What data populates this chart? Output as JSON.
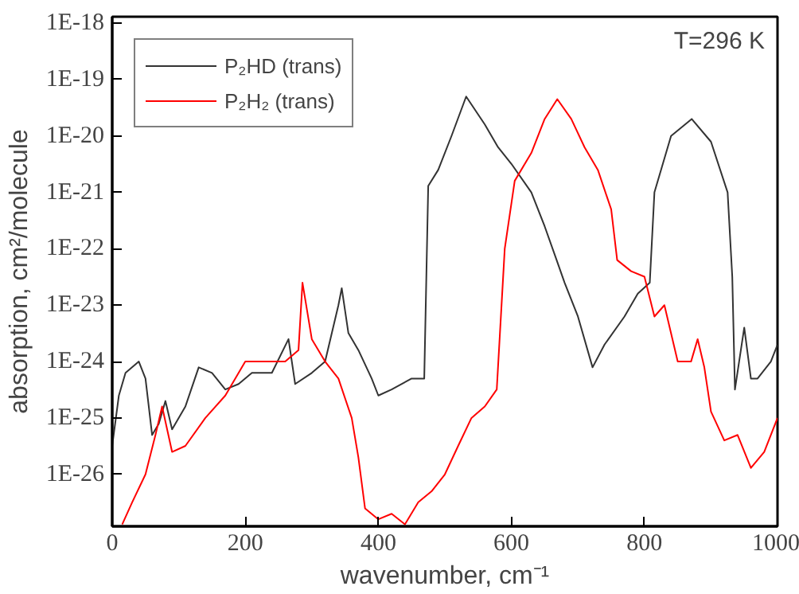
{
  "chart_data": {
    "type": "line",
    "xlabel": "wavenumber, cm⁻¹",
    "ylabel": "absorption, cm²/molecule",
    "annotations": [
      "T=296 K"
    ],
    "log": "y",
    "grid": false,
    "legend": "top left",
    "marker": "none",
    "line_style": "solid",
    "xlim": [
      0,
      1000
    ],
    "xticks": [
      0,
      200,
      400,
      600,
      800,
      1000
    ],
    "ylim": [
      1.2e-27,
      1.3e-18
    ],
    "yticks": [
      {
        "value": 1e-26,
        "label": "1E-26"
      },
      {
        "value": 1e-25,
        "label": "1E-25"
      },
      {
        "value": 1e-24,
        "label": "1E-24"
      },
      {
        "value": 1e-23,
        "label": "1E-23"
      },
      {
        "value": 1e-22,
        "label": "1E-22"
      },
      {
        "value": 1e-21,
        "label": "1E-21"
      },
      {
        "value": 1e-20,
        "label": "1E-20"
      },
      {
        "value": 1e-19,
        "label": "1E-19"
      },
      {
        "value": 1e-18,
        "label": "1E-18"
      }
    ],
    "series": [
      {
        "name": "P₂HD (trans)",
        "color": "#333333",
        "x": [
          0,
          10,
          20,
          40,
          50,
          60,
          70,
          80,
          90,
          110,
          130,
          150,
          170,
          190,
          210,
          240,
          265,
          275,
          300,
          320,
          340,
          345,
          355,
          370,
          390,
          400,
          420,
          450,
          469,
          475,
          490,
          510,
          532,
          560,
          580,
          600,
          630,
          650,
          668,
          680,
          700,
          722,
          740,
          770,
          790,
          808,
          815,
          840,
          871,
          900,
          925,
          932,
          936,
          950,
          960,
          970,
          990,
          1000
        ],
        "values": [
          3.2e-26,
          2.5e-25,
          6.3e-25,
          1e-24,
          5e-25,
          5e-26,
          7.9e-26,
          2e-25,
          6.3e-26,
          1.6e-25,
          7.9e-25,
          6.3e-25,
          3.2e-25,
          4e-25,
          6.3e-25,
          6.3e-25,
          2.5e-24,
          4e-25,
          6.3e-25,
          1e-24,
          1e-23,
          2e-23,
          3.2e-24,
          1.6e-24,
          5e-25,
          2.5e-25,
          3.2e-25,
          5e-25,
          5e-25,
          1.3e-21,
          2.5e-21,
          1e-20,
          5e-20,
          1.6e-20,
          6.3e-21,
          3.2e-21,
          1e-21,
          2.5e-22,
          6.3e-23,
          2.5e-23,
          6.3e-24,
          7.9e-25,
          2e-24,
          6.3e-24,
          1.6e-23,
          2.5e-23,
          1e-21,
          1e-20,
          2e-20,
          7.9e-21,
          1e-21,
          3.2e-23,
          3.2e-25,
          4e-24,
          5e-25,
          5e-25,
          1e-24,
          2e-24
        ]
      },
      {
        "name": "P₂H₂ (trans)",
        "color": "#ff0000",
        "x": [
          15,
          30,
          50,
          65,
          75,
          90,
          110,
          140,
          170,
          200,
          220,
          260,
          280,
          286,
          300,
          320,
          340,
          360,
          370,
          380,
          400,
          420,
          440,
          460,
          480,
          500,
          520,
          540,
          560,
          578,
          590,
          605,
          630,
          650,
          669,
          690,
          710,
          730,
          750,
          759,
          780,
          800,
          815,
          830,
          850,
          870,
          880,
          890,
          900,
          920,
          940,
          960,
          980,
          1000
        ],
        "values": [
          1.3e-27,
          3.2e-27,
          1e-26,
          5e-26,
          1.6e-25,
          2.5e-26,
          3.2e-26,
          1e-25,
          2.5e-25,
          1e-24,
          1e-24,
          1e-24,
          1.6e-24,
          2.5e-23,
          2.5e-24,
          1e-24,
          5e-25,
          1e-25,
          2e-26,
          2.5e-27,
          1.6e-27,
          2e-27,
          1.3e-27,
          3.2e-27,
          5e-27,
          1e-26,
          3.2e-26,
          1e-25,
          1.6e-25,
          3.2e-25,
          1e-22,
          1.6e-21,
          5e-21,
          2e-20,
          4.5e-20,
          2e-20,
          6.3e-21,
          2.5e-21,
          5e-22,
          6.3e-23,
          4e-23,
          3.2e-23,
          6.3e-24,
          1e-23,
          1e-24,
          1e-24,
          2.5e-24,
          7.9e-25,
          1.3e-25,
          4e-26,
          5e-26,
          1.3e-26,
          2.5e-26,
          1e-25
        ]
      }
    ]
  }
}
